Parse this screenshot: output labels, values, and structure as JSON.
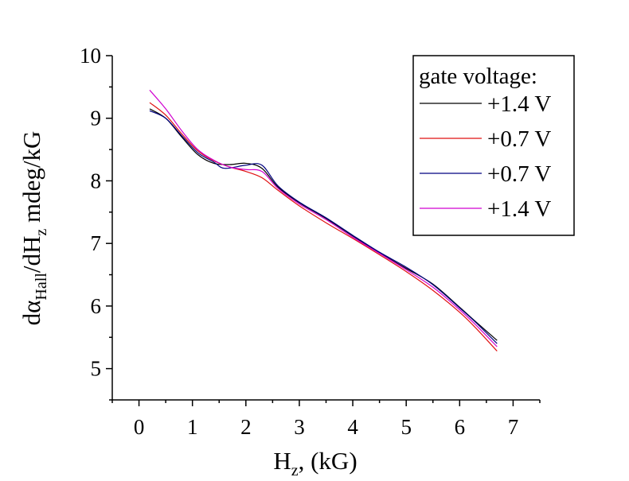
{
  "chart_data": {
    "type": "line",
    "xlabel": "Hz, (kG)",
    "xlabel_parts": {
      "main": "H",
      "sub": "z",
      "rest": ", (kG)"
    },
    "ylabel": "dαHall/dHz mdeg/kG",
    "ylabel_parts": {
      "a": "dα",
      "a_sub": "Hall",
      "b": "/dH",
      "b_sub": "z",
      "c": " mdeg/kG"
    },
    "xlim": [
      -0.5,
      7.5
    ],
    "ylim": [
      4.5,
      10
    ],
    "xticks": [
      0,
      1,
      2,
      3,
      4,
      5,
      6,
      7
    ],
    "yticks": [
      5,
      6,
      7,
      8,
      9,
      10
    ],
    "grid": false,
    "legend_title": "gate voltage:",
    "legend_position": "top-right",
    "series": [
      {
        "name": "+1.4 V",
        "color": "#000000",
        "points": [
          [
            0.2,
            9.15
          ],
          [
            0.5,
            9.0
          ],
          [
            0.8,
            8.7
          ],
          [
            1.1,
            8.42
          ],
          [
            1.4,
            8.28
          ],
          [
            1.7,
            8.26
          ],
          [
            2.0,
            8.28
          ],
          [
            2.3,
            8.2
          ],
          [
            2.6,
            7.9
          ],
          [
            3.0,
            7.65
          ],
          [
            3.5,
            7.4
          ],
          [
            4.0,
            7.12
          ],
          [
            4.5,
            6.85
          ],
          [
            5.0,
            6.6
          ],
          [
            5.5,
            6.35
          ],
          [
            6.0,
            5.98
          ],
          [
            6.3,
            5.75
          ],
          [
            6.7,
            5.45
          ]
        ]
      },
      {
        "name": "+0.7 V",
        "color": "#e01010",
        "points": [
          [
            0.2,
            9.25
          ],
          [
            0.5,
            9.05
          ],
          [
            0.8,
            8.75
          ],
          [
            1.1,
            8.48
          ],
          [
            1.4,
            8.32
          ],
          [
            1.7,
            8.22
          ],
          [
            2.0,
            8.15
          ],
          [
            2.3,
            8.05
          ],
          [
            2.6,
            7.85
          ],
          [
            3.0,
            7.6
          ],
          [
            3.5,
            7.33
          ],
          [
            4.0,
            7.08
          ],
          [
            4.5,
            6.82
          ],
          [
            5.0,
            6.55
          ],
          [
            5.5,
            6.25
          ],
          [
            6.0,
            5.9
          ],
          [
            6.3,
            5.65
          ],
          [
            6.7,
            5.28
          ]
        ]
      },
      {
        "name": "+0.7 V",
        "color": "#000080",
        "points": [
          [
            0.2,
            9.12
          ],
          [
            0.5,
            9.0
          ],
          [
            0.8,
            8.72
          ],
          [
            1.1,
            8.45
          ],
          [
            1.4,
            8.3
          ],
          [
            1.6,
            8.2
          ],
          [
            2.0,
            8.25
          ],
          [
            2.3,
            8.25
          ],
          [
            2.6,
            7.92
          ],
          [
            3.0,
            7.66
          ],
          [
            3.5,
            7.41
          ],
          [
            4.0,
            7.13
          ],
          [
            4.5,
            6.86
          ],
          [
            5.0,
            6.62
          ],
          [
            5.5,
            6.34
          ],
          [
            6.0,
            5.97
          ],
          [
            6.3,
            5.74
          ],
          [
            6.7,
            5.4
          ]
        ]
      },
      {
        "name": "+1.4 V",
        "color": "#d000d0",
        "points": [
          [
            0.2,
            9.45
          ],
          [
            0.5,
            9.15
          ],
          [
            0.8,
            8.8
          ],
          [
            1.1,
            8.5
          ],
          [
            1.4,
            8.33
          ],
          [
            1.7,
            8.22
          ],
          [
            2.0,
            8.18
          ],
          [
            2.3,
            8.15
          ],
          [
            2.6,
            7.88
          ],
          [
            3.0,
            7.63
          ],
          [
            3.5,
            7.38
          ],
          [
            4.0,
            7.1
          ],
          [
            4.5,
            6.84
          ],
          [
            5.0,
            6.58
          ],
          [
            5.5,
            6.3
          ],
          [
            6.0,
            5.94
          ],
          [
            6.3,
            5.7
          ],
          [
            6.7,
            5.35
          ]
        ]
      }
    ]
  }
}
